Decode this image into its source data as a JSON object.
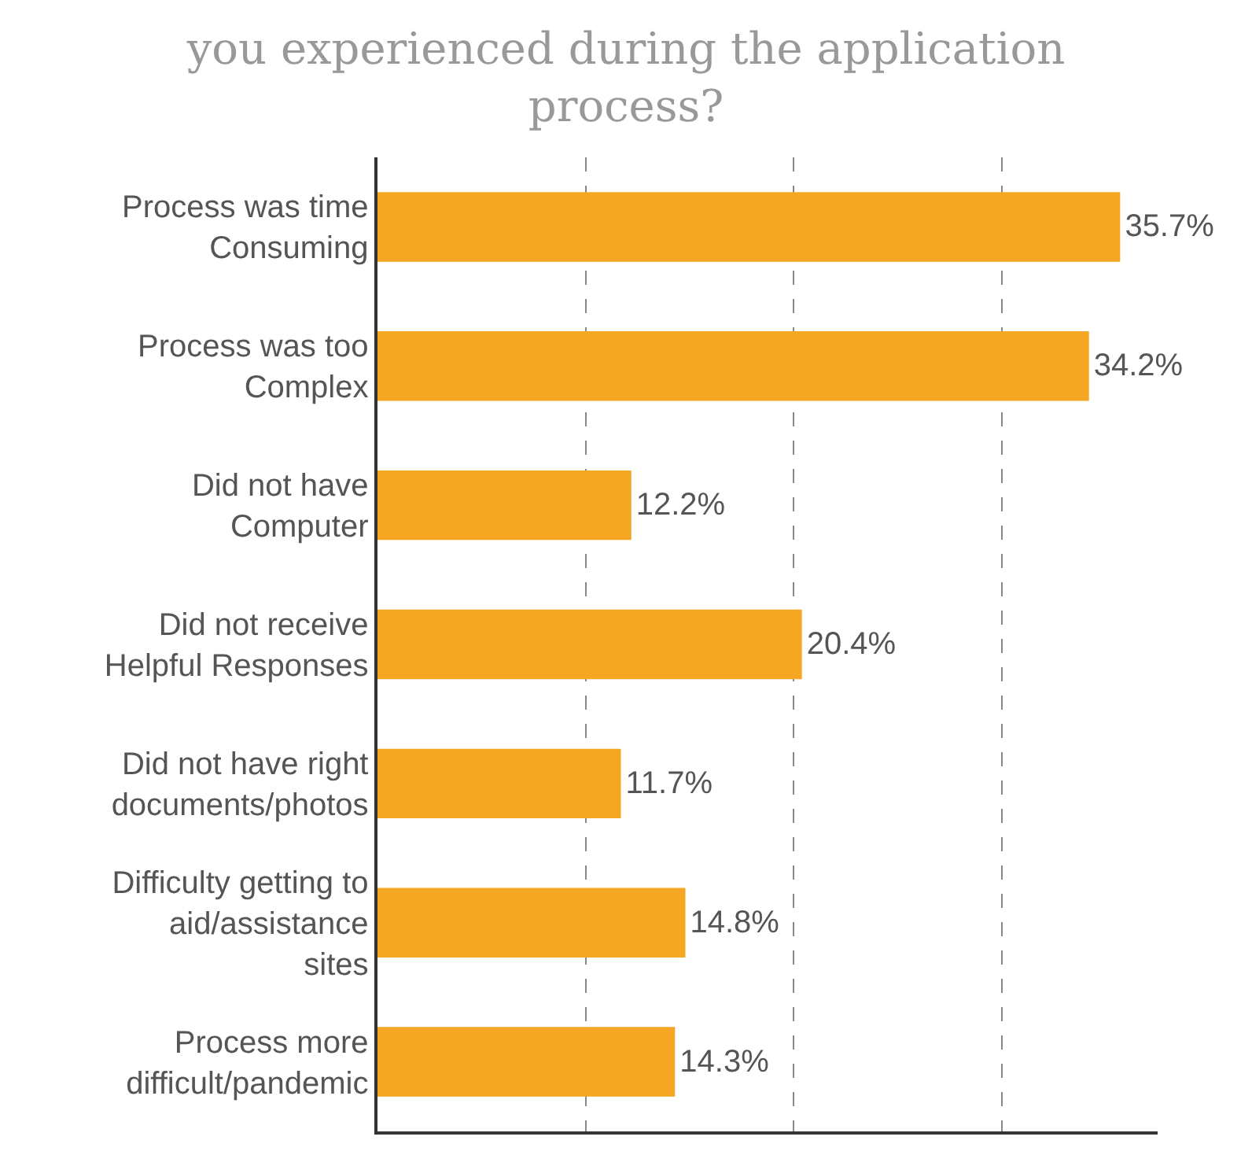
{
  "chart_data": {
    "type": "bar",
    "orientation": "horizontal",
    "title": "you experienced during the application\nprocess?",
    "categories": [
      "Process was time\nConsuming",
      "Process was too\nComplex",
      "Did not have\nComputer",
      "Did not receive\nHelpful Responses",
      "Did not have right\ndocuments/photos",
      "Difficulty getting to\naid/assistance\nsites",
      "Process more\ndifficult/pandemic"
    ],
    "values": [
      35.7,
      34.2,
      12.2,
      20.4,
      11.7,
      14.8,
      14.3
    ],
    "value_labels": [
      "35.7%",
      "34.2%",
      "12.2%",
      "20.4%",
      "11.7%",
      "14.8%",
      "14.3%"
    ],
    "color": "#f5a623",
    "xlim": [
      0,
      37.5
    ],
    "xticks": [
      {
        "value": 0,
        "label": null
      },
      {
        "value": 10,
        "label": null
      },
      {
        "value": 20,
        "label": null
      },
      {
        "value": 30,
        "label": null
      }
    ],
    "grid": "x",
    "tick_labels": "y"
  }
}
